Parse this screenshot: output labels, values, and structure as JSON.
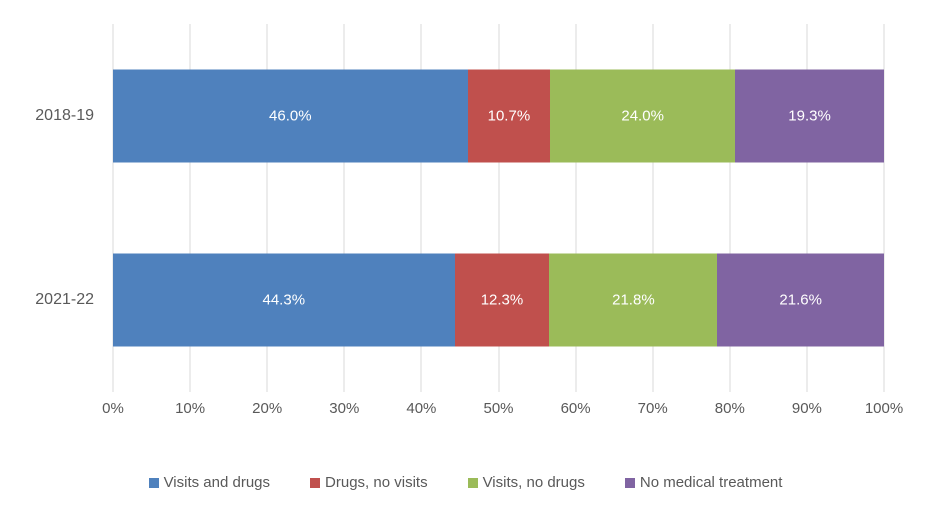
{
  "chart_data": {
    "type": "bar",
    "orientation": "horizontal",
    "stacked": true,
    "title": "",
    "xlabel": "",
    "ylabel": "",
    "xlim": [
      0,
      100
    ],
    "grid": true,
    "gridline_color": "#d9d9d9",
    "axis_text_color": "#595959",
    "value_label_color": "#ffffff",
    "value_label_format": "one_decimal_percent",
    "legend_position": "bottom",
    "categories": [
      "2018-19",
      "2021-22"
    ],
    "x_tick_labels": [
      "0%",
      "10%",
      "20%",
      "30%",
      "40%",
      "50%",
      "60%",
      "70%",
      "80%",
      "90%",
      "100%"
    ],
    "x_tick_values": [
      0,
      10,
      20,
      30,
      40,
      50,
      60,
      70,
      80,
      90,
      100
    ],
    "series": [
      {
        "name": "Visits and drugs",
        "color": "#4F81BD",
        "values": [
          46.0,
          44.3
        ]
      },
      {
        "name": "Drugs, no visits",
        "color": "#C0504D",
        "values": [
          10.7,
          12.3
        ]
      },
      {
        "name": "Visits, no drugs",
        "color": "#9BBB59",
        "values": [
          24.0,
          21.8
        ]
      },
      {
        "name": "No medical treatment",
        "color": "#8064A2",
        "values": [
          19.3,
          21.6
        ]
      }
    ]
  }
}
